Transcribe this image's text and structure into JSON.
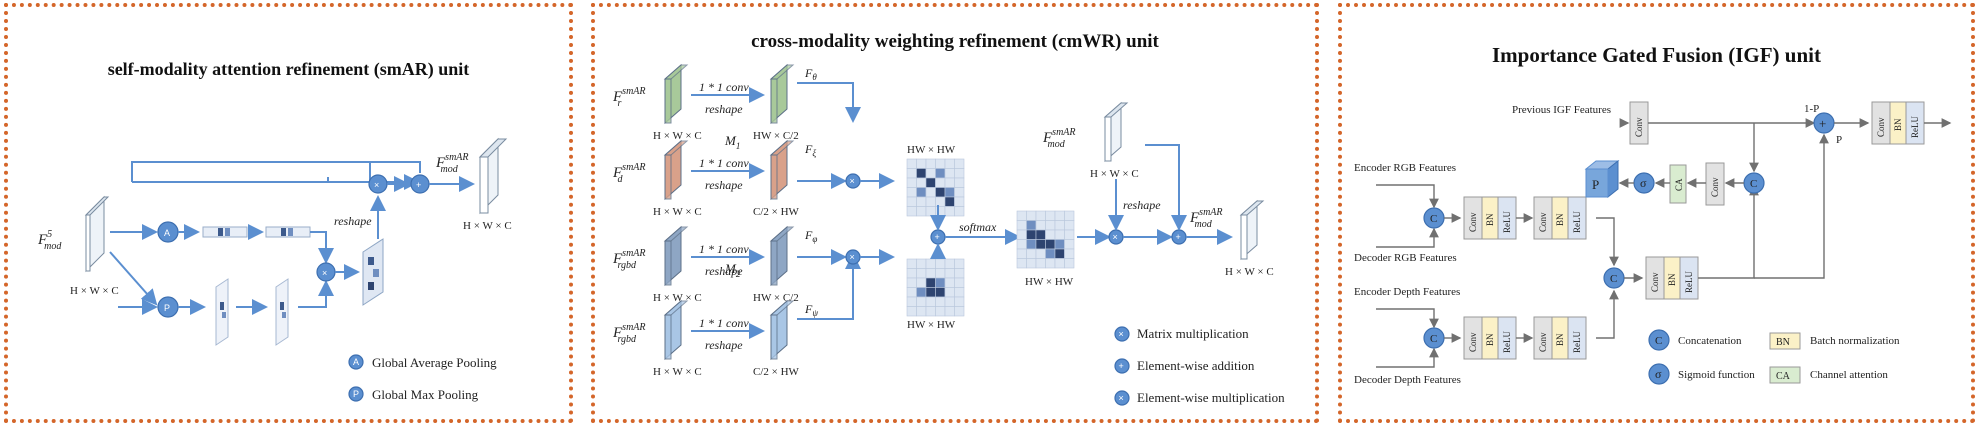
{
  "panels": {
    "smar": {
      "title": "self-modality attention refinement (smAR) unit",
      "input_main": "F",
      "input_sup": "5",
      "input_sub": "mod",
      "input_dim": "H × W × C",
      "output_main": "F",
      "output_sup": "smAR",
      "output_sub": "mod",
      "output_dim": "H × W × C",
      "reshape": "reshape",
      "node_avg": "A",
      "node_max": "P",
      "legend_avg": "Global Average Pooling",
      "legend_max": "Global Max Pooling"
    },
    "cmwr": {
      "title": "cross-modality weighting refinement (cmWR) unit",
      "inputs": [
        {
          "main": "F",
          "sup": "smAR",
          "sub": "r",
          "dim": "H × W × C",
          "conv": "1 * 1 conv",
          "reshape": "reshape",
          "out_label": "θ",
          "out_dim": "HW × C/2"
        },
        {
          "main": "F",
          "sup": "smAR",
          "sub": "d",
          "dim": "H × W × C",
          "conv": "1 * 1 conv",
          "reshape": "reshape",
          "out_label": "ξ",
          "out_dim": "C/2 × HW"
        },
        {
          "main": "F",
          "sup": "smAR",
          "sub": "rgbd",
          "dim": "H × W × C",
          "conv": "1 * 1 conv",
          "reshape": "reshape",
          "out_label": "φ",
          "out_dim": "HW × C/2"
        },
        {
          "main": "F",
          "sup": "smAR",
          "sub": "rgbd",
          "dim": "H × W × C",
          "conv": "1 * 1 conv",
          "reshape": "reshape",
          "out_label": "ψ",
          "out_dim": "C/2 × HW"
        }
      ],
      "m1": "M",
      "m1_sub": "1",
      "m2": "M",
      "m2_sub": "2",
      "hw_hw": "HW × HW",
      "softmax": "softmax",
      "mod_main": "F",
      "mod_sup": "smAR",
      "mod_sub": "mod",
      "mod_dim": "H × W × C",
      "reshape": "reshape",
      "out_main": "F",
      "out_sup": "smAR",
      "out_sub": "mod",
      "out_dim": "H × W × C",
      "legend_mat": "Matrix multiplication",
      "legend_add": "Element-wise addition",
      "legend_mul": "Element-wise multiplication"
    },
    "igf": {
      "title": "Importance Gated Fusion (IGF) unit",
      "prev": "Previous IGF Features",
      "enc_rgb": "Encoder RGB Features",
      "dec_rgb": "Decoder RGB Features",
      "enc_depth": "Encoder Depth Features",
      "dec_depth": "Decoder Depth Features",
      "conv": "Conv",
      "bn": "BN",
      "relu": "ReLU",
      "ca": "CA",
      "p": "P",
      "one_minus_p": "1-P",
      "c_node": "C",
      "sigma_node": "σ",
      "legend_concat": "Concatenation",
      "legend_bn": "Batch normalization",
      "legend_sigmoid": "Sigmoid function",
      "legend_ca": "Channel attention"
    }
  },
  "colors": {
    "border": "#d4662a",
    "arrow": "#5b8fd0",
    "node": "#5b8fd0",
    "green": "#a8c99a",
    "salmon": "#d9a18a",
    "slate": "#8ea6c4",
    "lightblue": "#a9c6e5",
    "bn": "#fbf1c7",
    "ca": "#d9ecd0"
  }
}
